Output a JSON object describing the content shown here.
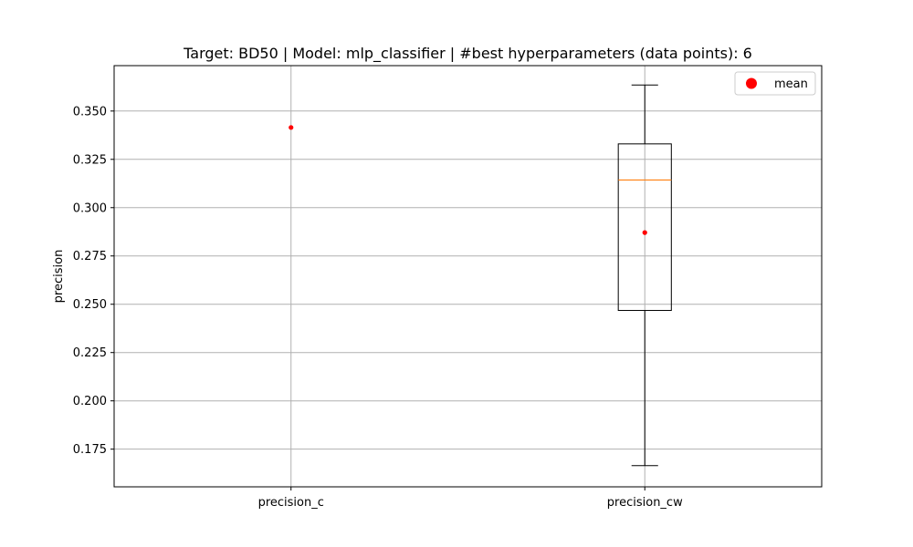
{
  "chart_data": {
    "type": "box",
    "title": "Target: BD50 | Model: mlp_classifier | #best hyperparameters (data points): 6",
    "xlabel": "",
    "ylabel": "precision",
    "categories": [
      "precision_c",
      "precision_cw"
    ],
    "boxes": [
      {
        "name": "precision_c",
        "whisker_low": 0.3415,
        "q1": 0.3415,
        "median": 0.3415,
        "q3": 0.3415,
        "whisker_high": 0.3415,
        "mean": 0.3415
      },
      {
        "name": "precision_cw",
        "whisker_low": 0.1665,
        "q1": 0.2468,
        "median": 0.3143,
        "q3": 0.333,
        "whisker_high": 0.3635,
        "mean": 0.2871
      }
    ],
    "yticks": [
      0.175,
      0.2,
      0.225,
      0.25,
      0.275,
      0.3,
      0.325,
      0.35
    ],
    "ytick_labels": [
      "0.175",
      "0.200",
      "0.225",
      "0.250",
      "0.275",
      "0.300",
      "0.325",
      "0.350"
    ],
    "ylim": [
      0.1555,
      0.3735
    ],
    "grid": true,
    "legend": {
      "position": "top-right",
      "entries": [
        {
          "label": "mean",
          "color": "#ff0000",
          "marker": "circle"
        }
      ]
    },
    "colors": {
      "box": "#000000",
      "median": "#ff7f0e",
      "mean": "#ff0000",
      "grid": "#b0b0b0"
    }
  }
}
